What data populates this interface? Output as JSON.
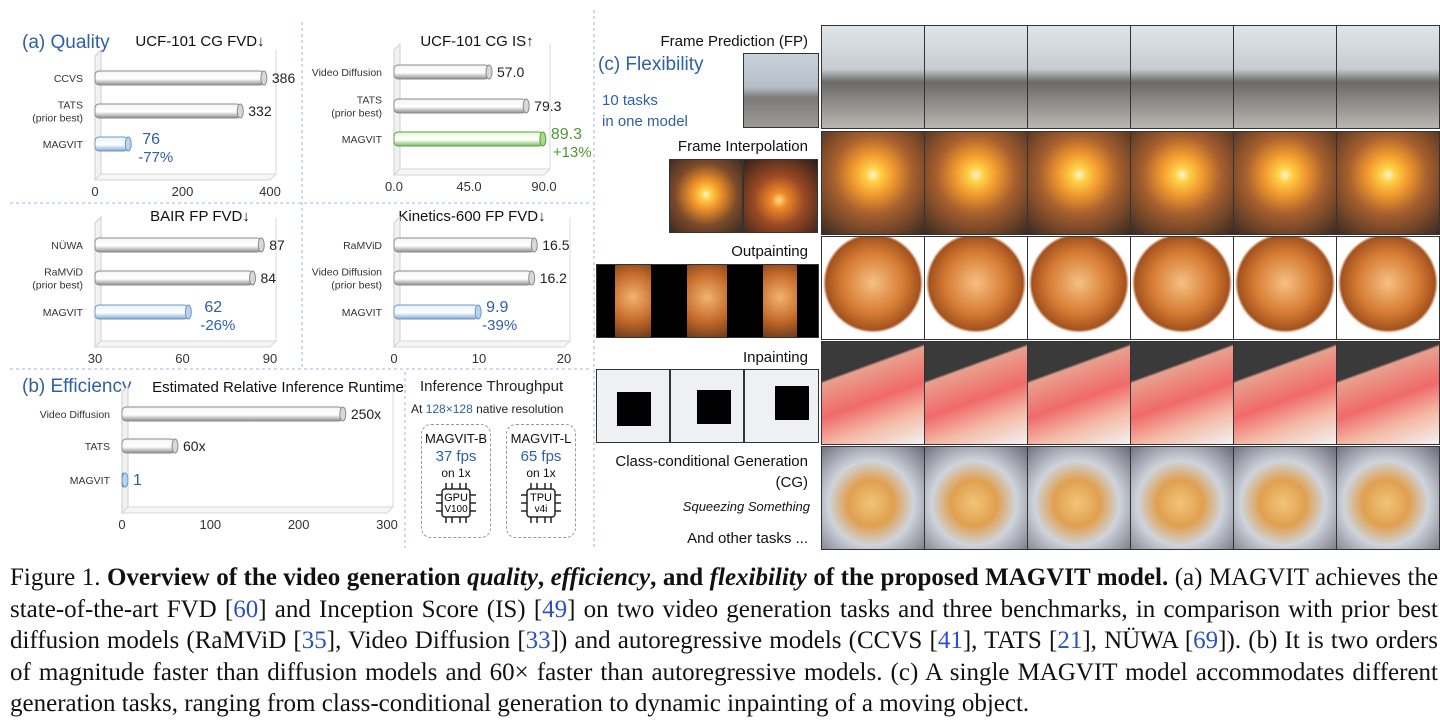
{
  "figure": {
    "panel_a_label": "(a) Quality",
    "panel_b_label": "(b) Efficiency",
    "panel_c_label": "(c) Flexibility",
    "flex_note_line1": "10 tasks",
    "flex_note_line2": "in one model",
    "tasks": [
      {
        "label": "Frame Prediction (FP)"
      },
      {
        "label": "Frame Interpolation"
      },
      {
        "label": "Outpainting"
      },
      {
        "label": "Inpainting"
      },
      {
        "label": "Class-conditional Generation",
        "label2": "(CG)",
        "sublabel": "Squeezing Something"
      }
    ],
    "other_tasks": "And other tasks ...",
    "throughput": {
      "title": "Inference Throughput",
      "subtitle_prefix": "At",
      "subtitle_res": "128×128",
      "subtitle_suffix": "native resolution",
      "chips": [
        {
          "name": "MAGVIT-B",
          "fps": "37 fps",
          "on": "on 1x",
          "hw1": "GPU",
          "hw2": "V100"
        },
        {
          "name": "MAGVIT-L",
          "fps": "65 fps",
          "on": "on 1x",
          "hw1": "TPU",
          "hw2": "v4i"
        }
      ]
    }
  },
  "chart_data": [
    {
      "type": "bar",
      "title": "UCF-101 CG FVD↓",
      "categories": [
        "CCVS",
        "TATS\n(prior best)",
        "MAGVIT"
      ],
      "values": [
        386,
        332,
        76
      ],
      "ticks": [
        "0",
        "200",
        "400"
      ],
      "xlim": [
        0,
        400
      ],
      "highlight": "-77%",
      "highlight_color": "#2f5fa5"
    },
    {
      "type": "bar",
      "title": "UCF-101 CG IS↑",
      "categories": [
        "Video Diffusion",
        "TATS\n(prior best)",
        "MAGVIT"
      ],
      "values": [
        57.0,
        79.3,
        89.3
      ],
      "value_labels": [
        "57.0",
        "79.3",
        "89.3"
      ],
      "ticks": [
        "0.0",
        "45.0",
        "90.0"
      ],
      "xlim": [
        0,
        90
      ],
      "highlight": "+13%",
      "highlight_color": "#4a9a2e"
    },
    {
      "type": "bar",
      "title": "BAIR FP FVD↓",
      "categories": [
        "NÜWA",
        "RaMViD\n(prior best)",
        "MAGVIT"
      ],
      "values": [
        87,
        84,
        62
      ],
      "ticks": [
        "30",
        "60",
        "90"
      ],
      "xlim": [
        30,
        90
      ],
      "highlight": "-26%",
      "highlight_color": "#2f5fa5"
    },
    {
      "type": "bar",
      "title": "Kinetics-600 FP FVD↓",
      "categories": [
        "RaMViD",
        "Video Diffusion\n(prior best)",
        "MAGVIT"
      ],
      "values": [
        16.5,
        16.2,
        9.9
      ],
      "value_labels": [
        "16.5",
        "16.2",
        "9.9"
      ],
      "ticks": [
        "0",
        "10",
        "20"
      ],
      "xlim": [
        0,
        20
      ],
      "highlight": "-39%",
      "highlight_color": "#2f5fa5"
    },
    {
      "type": "bar",
      "title": "Estimated Relative Inference Runtime",
      "categories": [
        "Video Diffusion",
        "TATS",
        "MAGVIT"
      ],
      "values": [
        250,
        60,
        1
      ],
      "value_labels": [
        "250x",
        "60x",
        "1"
      ],
      "ticks": [
        "0",
        "100",
        "200",
        "300"
      ],
      "xlim": [
        0,
        300
      ]
    }
  ],
  "caption": {
    "fig_no": "Figure 1.",
    "b1": "Overview of the video generation",
    "b_i1": "quality",
    "b2": ",",
    "b_i2": "efficiency",
    "b3": ", and",
    "b_i3": "flexibility",
    "b4": "of the proposed MAGVIT model.",
    "t1": "(a) MAGVIT achieves the state-of-the-art FVD [",
    "r60": "60",
    "t2": "] and Inception Score (IS) [",
    "r49": "49",
    "t3": "] on two video generation tasks and three benchmarks, in comparison with prior best diffusion models (RaMViD [",
    "r35": "35",
    "t4": "], Video Diffusion [",
    "r33": "33",
    "t5": "]) and autoregressive models (CCVS [",
    "r41": "41",
    "t6": "], TATS [",
    "r21": "21",
    "t7": "], NÜWA [",
    "r69": "69",
    "t8": "]). (b) It is two orders of magnitude faster than diffusion models and 60× faster than autoregressive models. (c) A single MAGVIT model accommodates different generation tasks, ranging from class-conditional generation to dynamic inpainting of a moving object."
  }
}
